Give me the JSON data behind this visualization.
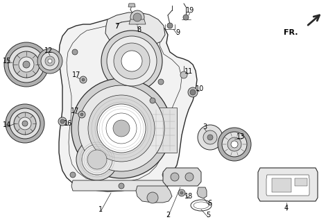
{
  "bg_color": "#ffffff",
  "line_color": "#2a2a2a",
  "label_color": "#000000",
  "figsize": [
    4.83,
    3.2
  ],
  "dpi": 100,
  "body_color": "#f2f2f2",
  "bearing_outer": "#b8b8b8",
  "bearing_inner": "#e8e8e8",
  "bearing_core": "#c8c8c8"
}
